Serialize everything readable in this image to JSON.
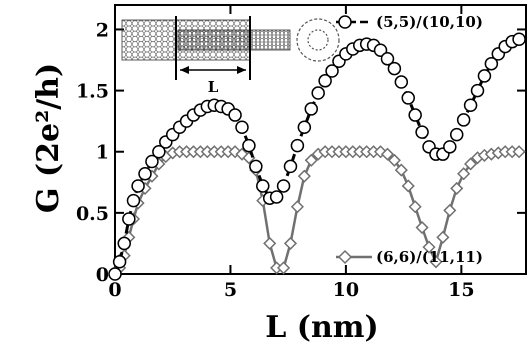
{
  "chart_data": {
    "type": "line",
    "xlabel": "L (nm)",
    "ylabel": "G (2e²/h)",
    "xlim": [
      0,
      17.8
    ],
    "ylim": [
      0,
      2.2
    ],
    "x_ticks": [
      "0",
      "5",
      "10",
      "15"
    ],
    "y_ticks": [
      "0",
      "0.5",
      "1",
      "1.5",
      "2"
    ],
    "inset_label": "L",
    "series": [
      {
        "name": "(5,5)/(10,10)",
        "color": "#000000",
        "marker": "circle",
        "line": "dashed",
        "x": [
          0.0,
          0.2,
          0.4,
          0.6,
          0.8,
          1.0,
          1.3,
          1.6,
          1.9,
          2.2,
          2.5,
          2.8,
          3.1,
          3.4,
          3.7,
          4.0,
          4.3,
          4.6,
          4.9,
          5.2,
          5.5,
          5.8,
          6.1,
          6.4,
          6.7,
          7.0,
          7.3,
          7.6,
          7.9,
          8.2,
          8.5,
          8.8,
          9.1,
          9.4,
          9.7,
          10.0,
          10.3,
          10.6,
          10.9,
          11.2,
          11.5,
          11.8,
          12.1,
          12.4,
          12.7,
          13.0,
          13.3,
          13.6,
          13.9,
          14.2,
          14.5,
          14.8,
          15.1,
          15.4,
          15.7,
          16.0,
          16.3,
          16.6,
          16.9,
          17.2,
          17.5
        ],
        "y": [
          0.0,
          0.1,
          0.25,
          0.45,
          0.6,
          0.72,
          0.82,
          0.92,
          1.0,
          1.08,
          1.14,
          1.2,
          1.25,
          1.3,
          1.34,
          1.37,
          1.38,
          1.37,
          1.35,
          1.3,
          1.2,
          1.05,
          0.88,
          0.72,
          0.62,
          0.63,
          0.72,
          0.88,
          1.05,
          1.2,
          1.35,
          1.48,
          1.58,
          1.66,
          1.74,
          1.8,
          1.84,
          1.87,
          1.88,
          1.87,
          1.83,
          1.76,
          1.68,
          1.57,
          1.44,
          1.3,
          1.16,
          1.04,
          0.98,
          0.98,
          1.04,
          1.14,
          1.26,
          1.38,
          1.5,
          1.62,
          1.72,
          1.8,
          1.86,
          1.9,
          1.92
        ]
      },
      {
        "name": "(6,6)/(11,11)",
        "color": "#707070",
        "marker": "diamond",
        "line": "solid",
        "x": [
          0.0,
          0.2,
          0.4,
          0.6,
          0.8,
          1.0,
          1.3,
          1.6,
          1.9,
          2.2,
          2.5,
          2.8,
          3.1,
          3.4,
          3.7,
          4.0,
          4.3,
          4.6,
          4.9,
          5.2,
          5.5,
          5.8,
          6.1,
          6.4,
          6.7,
          7.0,
          7.3,
          7.6,
          7.9,
          8.2,
          8.5,
          8.8,
          9.1,
          9.4,
          9.7,
          10.0,
          10.3,
          10.6,
          10.9,
          11.2,
          11.5,
          11.8,
          12.1,
          12.4,
          12.7,
          13.0,
          13.3,
          13.6,
          13.9,
          14.2,
          14.5,
          14.8,
          15.1,
          15.4,
          15.7,
          16.0,
          16.3,
          16.6,
          16.9,
          17.2,
          17.5
        ],
        "y": [
          0.0,
          0.05,
          0.15,
          0.3,
          0.45,
          0.58,
          0.7,
          0.8,
          0.9,
          0.96,
          0.99,
          1.0,
          1.0,
          1.0,
          1.0,
          1.0,
          1.0,
          1.0,
          1.0,
          1.0,
          0.98,
          0.95,
          0.85,
          0.6,
          0.25,
          0.05,
          0.05,
          0.25,
          0.55,
          0.8,
          0.93,
          0.98,
          1.0,
          1.0,
          1.0,
          1.0,
          1.0,
          1.0,
          1.0,
          1.0,
          1.0,
          0.98,
          0.93,
          0.85,
          0.72,
          0.55,
          0.38,
          0.22,
          0.1,
          0.3,
          0.52,
          0.7,
          0.82,
          0.9,
          0.95,
          0.97,
          0.98,
          0.99,
          1.0,
          1.0,
          1.0
        ]
      }
    ]
  }
}
